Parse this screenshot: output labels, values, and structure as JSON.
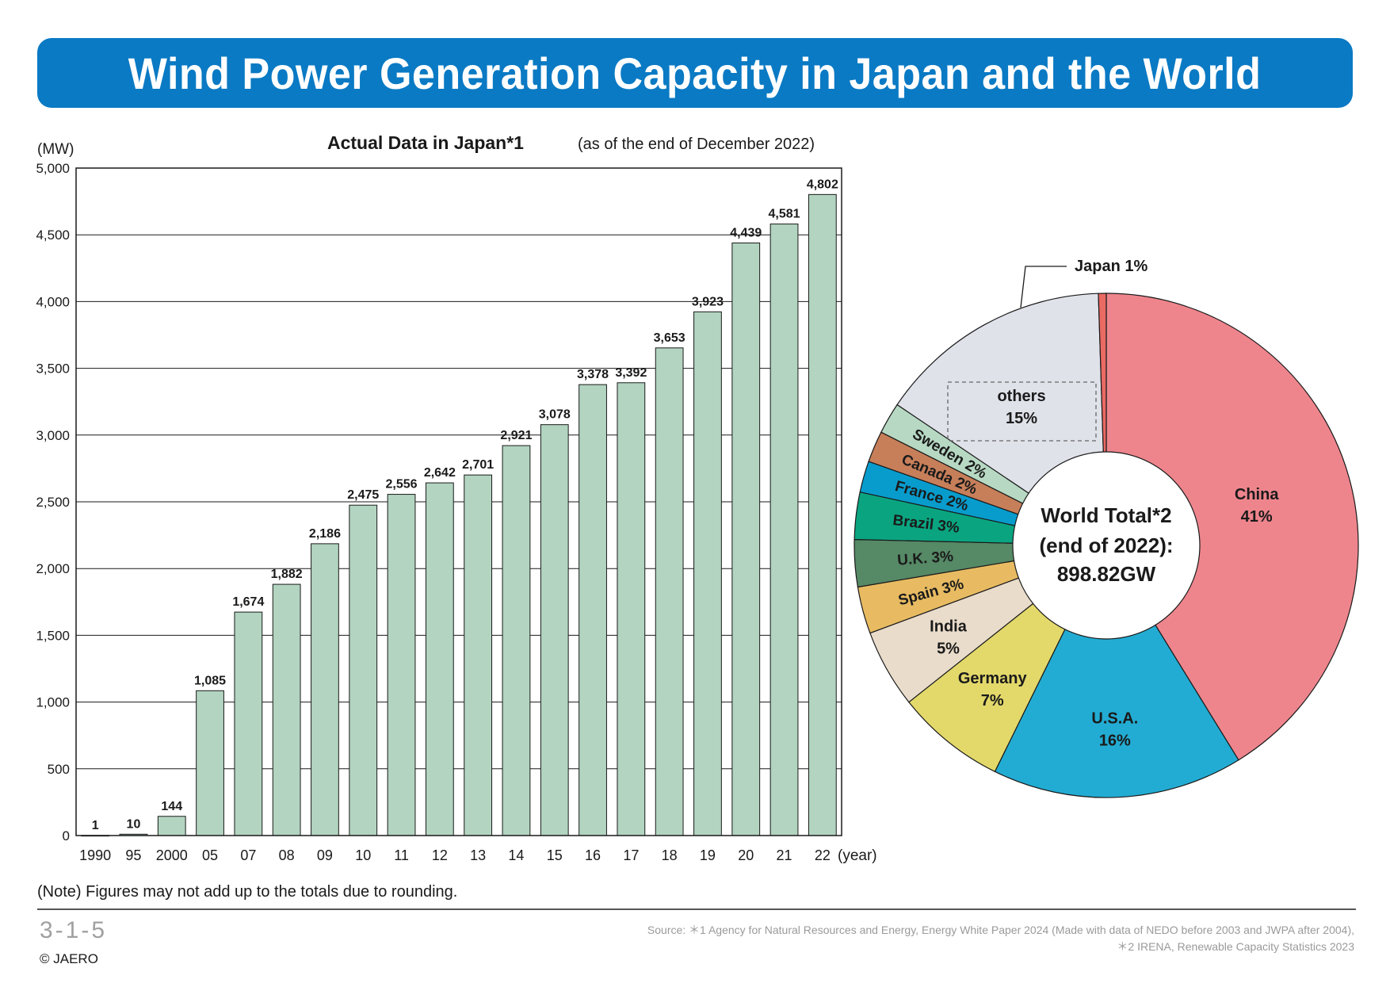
{
  "header": {
    "title": "Wind Power Generation Capacity in Japan and the World"
  },
  "chart_data": [
    {
      "type": "bar",
      "title": "Actual Data in Japan*1",
      "subtitle": "(as of the end of December 2022)",
      "ylabel": "(MW)",
      "xlabel": "(year)",
      "ylim": [
        0,
        5000
      ],
      "yticks": [
        0,
        500,
        1000,
        1500,
        2000,
        2500,
        3000,
        3500,
        4000,
        4500,
        5000
      ],
      "ytick_labels": [
        "0",
        "500",
        "1,000",
        "1,500",
        "2,000",
        "2,500",
        "3,000",
        "3,500",
        "4,000",
        "4,500",
        "5,000"
      ],
      "grid": true,
      "categories": [
        "1990",
        "95",
        "2000",
        "05",
        "07",
        "08",
        "09",
        "10",
        "11",
        "12",
        "13",
        "14",
        "15",
        "16",
        "17",
        "18",
        "19",
        "20",
        "21",
        "22"
      ],
      "values": [
        1,
        10,
        144,
        1085,
        1674,
        1882,
        2186,
        2475,
        2556,
        2642,
        2701,
        2921,
        3078,
        3378,
        3392,
        3653,
        3923,
        4439,
        4581,
        4802
      ],
      "value_labels": [
        "1",
        "10",
        "144",
        "1,085",
        "1,674",
        "1,882",
        "2,186",
        "2,475",
        "2,556",
        "2,642",
        "2,701",
        "2,921",
        "3,078",
        "3,378",
        "3,392",
        "3,653",
        "3,923",
        "4,439",
        "4,581",
        "4,802"
      ],
      "bar_color": "#b2d4c0"
    },
    {
      "type": "pie",
      "center_label": [
        "World Total*2",
        "(end of 2022):",
        "898.82GW"
      ],
      "slices": [
        {
          "name": "China",
          "percent_label": "41%",
          "value": 41,
          "color": "#ee858d"
        },
        {
          "name": "U.S.A.",
          "percent_label": "16%",
          "value": 16,
          "color": "#23acd3"
        },
        {
          "name": "Germany",
          "percent_label": "7%",
          "value": 7,
          "color": "#e3d96b"
        },
        {
          "name": "India",
          "percent_label": "5%",
          "value": 5,
          "color": "#e9dccb"
        },
        {
          "name": "Spain",
          "percent_label": "3%",
          "value": 3,
          "color": "#e8bb62"
        },
        {
          "name": "U.K.",
          "percent_label": "3%",
          "value": 3,
          "color": "#568966"
        },
        {
          "name": "Brazil",
          "percent_label": "3%",
          "value": 3,
          "color": "#0aa580"
        },
        {
          "name": "France",
          "percent_label": "2%",
          "value": 2,
          "color": "#089ccd"
        },
        {
          "name": "Canada",
          "percent_label": "2%",
          "value": 2,
          "color": "#c77f5a"
        },
        {
          "name": "Sweden",
          "percent_label": "2%",
          "value": 2,
          "color": "#b7d9c3"
        },
        {
          "name": "others",
          "percent_label": "15%",
          "value": 15,
          "color": "#e0e2ea"
        },
        {
          "name": "Japan",
          "percent_label": "1%",
          "value": 0.5,
          "color": "#ea6a64"
        }
      ]
    }
  ],
  "note": "(Note) Figures may not add up to the totals due to rounding.",
  "footer": {
    "page_number": "3-1-5",
    "copyright": "© JAERO",
    "source_line1": "Source: ＊1  Agency for Natural Resources and Energy, Energy White Paper 2024 (Made with data of NEDO before 2003 and JWPA after 2004),",
    "source_line2": "＊2  IRENA, Renewable Capacity Statistics 2023"
  }
}
